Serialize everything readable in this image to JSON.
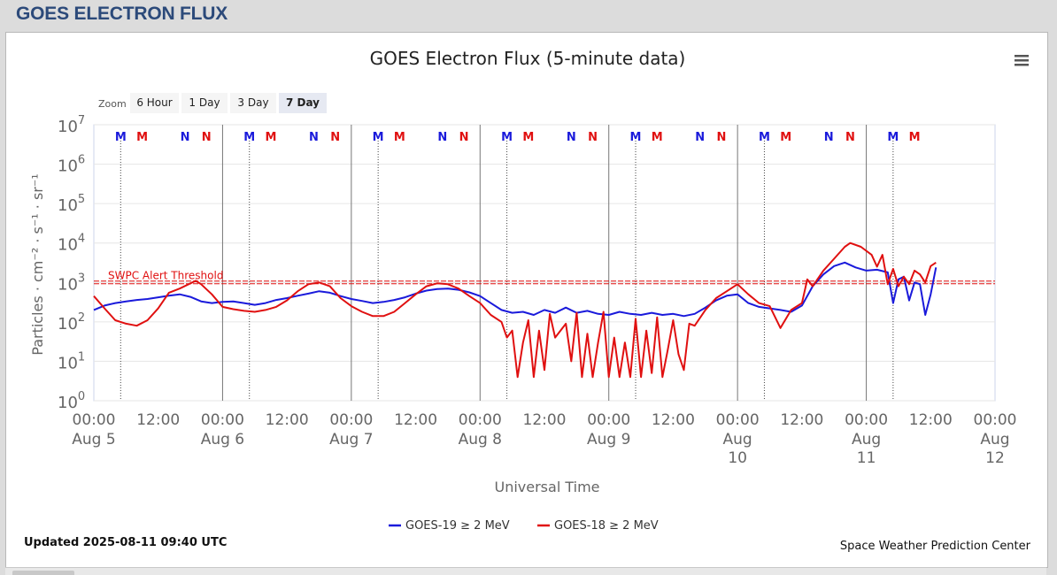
{
  "page": {
    "title": "GOES ELECTRON FLUX"
  },
  "chart": {
    "title": "GOES Electron Flux (5-minute data)",
    "zoom_label": "Zoom",
    "zoom_buttons": [
      "6 Hour",
      "1 Day",
      "3 Day",
      "7 Day"
    ],
    "zoom_selected": "7 Day",
    "y_axis_title": "Particles · cm⁻² · s⁻¹ · sr⁻¹",
    "x_axis_title": "Universal Time",
    "threshold_label": "SWPC Alert Threshold",
    "updated": "Updated 2025-08-11 09:40 UTC",
    "credit": "Space Weather Prediction Center",
    "menu_icon": "hamburger-menu-icon",
    "colors": {
      "goes19": "#1a1adb",
      "goes18": "#e01010",
      "threshold": "#e01010",
      "marker_m": "#1a1adb",
      "marker_n": "#1a1adb",
      "page_title": "#2c4a7a"
    }
  },
  "chart_data": {
    "type": "line",
    "title": "GOES Electron Flux (5-minute data)",
    "xlabel": "Universal Time",
    "ylabel": "Particles · cm⁻² · s⁻¹ · sr⁻¹",
    "y_scale": "log",
    "ylim": [
      1,
      10000000
    ],
    "xlim_hours": [
      0,
      168
    ],
    "y_ticks": [
      {
        "base": "10",
        "exp": "0"
      },
      {
        "base": "10",
        "exp": "1"
      },
      {
        "base": "10",
        "exp": "2"
      },
      {
        "base": "10",
        "exp": "3"
      },
      {
        "base": "10",
        "exp": "4"
      },
      {
        "base": "10",
        "exp": "5"
      },
      {
        "base": "10",
        "exp": "6"
      },
      {
        "base": "10",
        "exp": "7"
      }
    ],
    "x_ticks": [
      {
        "h": 0,
        "time": "00:00",
        "date": [
          "Aug 5"
        ]
      },
      {
        "h": 12,
        "time": "12:00",
        "date": []
      },
      {
        "h": 24,
        "time": "00:00",
        "date": [
          "Aug 6"
        ]
      },
      {
        "h": 36,
        "time": "12:00",
        "date": []
      },
      {
        "h": 48,
        "time": "00:00",
        "date": [
          "Aug 7"
        ]
      },
      {
        "h": 60,
        "time": "12:00",
        "date": []
      },
      {
        "h": 72,
        "time": "00:00",
        "date": [
          "Aug 8"
        ]
      },
      {
        "h": 84,
        "time": "12:00",
        "date": []
      },
      {
        "h": 96,
        "time": "00:00",
        "date": [
          "Aug 9"
        ]
      },
      {
        "h": 108,
        "time": "12:00",
        "date": []
      },
      {
        "h": 120,
        "time": "00:00",
        "date": [
          "Aug",
          "10"
        ]
      },
      {
        "h": 132,
        "time": "12:00",
        "date": []
      },
      {
        "h": 144,
        "time": "00:00",
        "date": [
          "Aug",
          "11"
        ]
      },
      {
        "h": 156,
        "time": "12:00",
        "date": []
      },
      {
        "h": 168,
        "time": "00:00",
        "date": [
          "Aug",
          "12"
        ]
      }
    ],
    "threshold": 1000,
    "markers": [
      {
        "h": 5,
        "label": "M",
        "color": "#1a1adb"
      },
      {
        "h": 9,
        "label": "M",
        "color": "#e01010"
      },
      {
        "h": 17,
        "label": "N",
        "color": "#1a1adb"
      },
      {
        "h": 21,
        "label": "N",
        "color": "#e01010"
      },
      {
        "h": 29,
        "label": "M",
        "color": "#1a1adb"
      },
      {
        "h": 33,
        "label": "M",
        "color": "#e01010"
      },
      {
        "h": 41,
        "label": "N",
        "color": "#1a1adb"
      },
      {
        "h": 45,
        "label": "N",
        "color": "#e01010"
      },
      {
        "h": 53,
        "label": "M",
        "color": "#1a1adb"
      },
      {
        "h": 57,
        "label": "M",
        "color": "#e01010"
      },
      {
        "h": 65,
        "label": "N",
        "color": "#1a1adb"
      },
      {
        "h": 69,
        "label": "N",
        "color": "#e01010"
      },
      {
        "h": 77,
        "label": "M",
        "color": "#1a1adb"
      },
      {
        "h": 81,
        "label": "M",
        "color": "#e01010"
      },
      {
        "h": 89,
        "label": "N",
        "color": "#1a1adb"
      },
      {
        "h": 93,
        "label": "N",
        "color": "#e01010"
      },
      {
        "h": 101,
        "label": "M",
        "color": "#1a1adb"
      },
      {
        "h": 105,
        "label": "M",
        "color": "#e01010"
      },
      {
        "h": 113,
        "label": "N",
        "color": "#1a1adb"
      },
      {
        "h": 117,
        "label": "N",
        "color": "#e01010"
      },
      {
        "h": 125,
        "label": "M",
        "color": "#1a1adb"
      },
      {
        "h": 129,
        "label": "M",
        "color": "#e01010"
      },
      {
        "h": 137,
        "label": "N",
        "color": "#1a1adb"
      },
      {
        "h": 141,
        "label": "N",
        "color": "#e01010"
      },
      {
        "h": 149,
        "label": "M",
        "color": "#1a1adb"
      },
      {
        "h": 153,
        "label": "M",
        "color": "#e01010"
      }
    ],
    "series": [
      {
        "name": "GOES-19 ≥ 2 MeV",
        "color": "#1a1adb",
        "points": [
          [
            0,
            200
          ],
          [
            2,
            260
          ],
          [
            4,
            300
          ],
          [
            6,
            330
          ],
          [
            8,
            360
          ],
          [
            10,
            380
          ],
          [
            12,
            420
          ],
          [
            14,
            460
          ],
          [
            16,
            500
          ],
          [
            18,
            430
          ],
          [
            20,
            330
          ],
          [
            22,
            300
          ],
          [
            24,
            320
          ],
          [
            26,
            330
          ],
          [
            28,
            300
          ],
          [
            30,
            270
          ],
          [
            32,
            300
          ],
          [
            34,
            360
          ],
          [
            36,
            400
          ],
          [
            38,
            460
          ],
          [
            40,
            520
          ],
          [
            42,
            600
          ],
          [
            44,
            550
          ],
          [
            46,
            450
          ],
          [
            48,
            380
          ],
          [
            50,
            340
          ],
          [
            52,
            300
          ],
          [
            54,
            320
          ],
          [
            56,
            360
          ],
          [
            58,
            420
          ],
          [
            60,
            520
          ],
          [
            62,
            620
          ],
          [
            64,
            680
          ],
          [
            66,
            700
          ],
          [
            68,
            650
          ],
          [
            70,
            560
          ],
          [
            72,
            450
          ],
          [
            74,
            300
          ],
          [
            76,
            200
          ],
          [
            78,
            170
          ],
          [
            80,
            180
          ],
          [
            82,
            150
          ],
          [
            84,
            200
          ],
          [
            86,
            170
          ],
          [
            88,
            230
          ],
          [
            90,
            170
          ],
          [
            92,
            190
          ],
          [
            94,
            160
          ],
          [
            96,
            150
          ],
          [
            98,
            180
          ],
          [
            100,
            160
          ],
          [
            102,
            150
          ],
          [
            104,
            170
          ],
          [
            106,
            150
          ],
          [
            108,
            160
          ],
          [
            110,
            140
          ],
          [
            112,
            160
          ],
          [
            114,
            230
          ],
          [
            116,
            350
          ],
          [
            118,
            460
          ],
          [
            120,
            500
          ],
          [
            122,
            300
          ],
          [
            124,
            240
          ],
          [
            126,
            220
          ],
          [
            128,
            200
          ],
          [
            130,
            180
          ],
          [
            132,
            260
          ],
          [
            134,
            800
          ],
          [
            136,
            1600
          ],
          [
            138,
            2600
          ],
          [
            140,
            3200
          ],
          [
            142,
            2400
          ],
          [
            144,
            2000
          ],
          [
            146,
            2100
          ],
          [
            148,
            1800
          ],
          [
            149,
            300
          ],
          [
            150,
            1200
          ],
          [
            151,
            1400
          ],
          [
            152,
            350
          ],
          [
            153,
            1000
          ],
          [
            154,
            900
          ],
          [
            155,
            150
          ],
          [
            156,
            500
          ],
          [
            157,
            2400
          ]
        ]
      },
      {
        "name": "GOES-18 ≥ 2 MeV",
        "color": "#e01010",
        "points": [
          [
            0,
            450
          ],
          [
            2,
            220
          ],
          [
            4,
            110
          ],
          [
            6,
            90
          ],
          [
            8,
            80
          ],
          [
            10,
            110
          ],
          [
            12,
            220
          ],
          [
            14,
            550
          ],
          [
            16,
            700
          ],
          [
            18,
            950
          ],
          [
            19,
            1100
          ],
          [
            20,
            900
          ],
          [
            22,
            500
          ],
          [
            24,
            240
          ],
          [
            26,
            210
          ],
          [
            28,
            190
          ],
          [
            30,
            180
          ],
          [
            32,
            200
          ],
          [
            34,
            240
          ],
          [
            36,
            350
          ],
          [
            38,
            600
          ],
          [
            40,
            900
          ],
          [
            42,
            1000
          ],
          [
            44,
            800
          ],
          [
            46,
            400
          ],
          [
            48,
            250
          ],
          [
            50,
            180
          ],
          [
            52,
            140
          ],
          [
            54,
            140
          ],
          [
            56,
            180
          ],
          [
            58,
            300
          ],
          [
            60,
            500
          ],
          [
            62,
            800
          ],
          [
            64,
            950
          ],
          [
            66,
            900
          ],
          [
            68,
            700
          ],
          [
            70,
            450
          ],
          [
            72,
            300
          ],
          [
            74,
            150
          ],
          [
            76,
            100
          ],
          [
            77,
            40
          ],
          [
            78,
            60
          ],
          [
            79,
            4
          ],
          [
            80,
            30
          ],
          [
            81,
            110
          ],
          [
            82,
            4
          ],
          [
            83,
            60
          ],
          [
            84,
            6
          ],
          [
            85,
            160
          ],
          [
            86,
            40
          ],
          [
            88,
            90
          ],
          [
            89,
            10
          ],
          [
            90,
            170
          ],
          [
            91,
            4
          ],
          [
            92,
            50
          ],
          [
            93,
            4
          ],
          [
            94,
            30
          ],
          [
            95,
            180
          ],
          [
            96,
            4
          ],
          [
            97,
            40
          ],
          [
            98,
            4
          ],
          [
            99,
            30
          ],
          [
            100,
            4
          ],
          [
            101,
            120
          ],
          [
            102,
            4
          ],
          [
            103,
            60
          ],
          [
            104,
            5
          ],
          [
            105,
            130
          ],
          [
            106,
            4
          ],
          [
            107,
            20
          ],
          [
            108,
            110
          ],
          [
            109,
            15
          ],
          [
            110,
            6
          ],
          [
            111,
            90
          ],
          [
            112,
            80
          ],
          [
            114,
            200
          ],
          [
            116,
            400
          ],
          [
            118,
            600
          ],
          [
            120,
            900
          ],
          [
            122,
            500
          ],
          [
            124,
            300
          ],
          [
            126,
            250
          ],
          [
            128,
            70
          ],
          [
            130,
            200
          ],
          [
            132,
            300
          ],
          [
            133,
            1200
          ],
          [
            134,
            800
          ],
          [
            136,
            2000
          ],
          [
            138,
            4000
          ],
          [
            140,
            8000
          ],
          [
            141,
            10000
          ],
          [
            143,
            8000
          ],
          [
            145,
            5000
          ],
          [
            146,
            2500
          ],
          [
            147,
            5000
          ],
          [
            148,
            900
          ],
          [
            149,
            2200
          ],
          [
            150,
            800
          ],
          [
            151,
            1400
          ],
          [
            152,
            900
          ],
          [
            153,
            2000
          ],
          [
            154,
            1600
          ],
          [
            155,
            1000
          ],
          [
            156,
            2600
          ],
          [
            157,
            3200
          ]
        ]
      }
    ],
    "legend": {
      "position": "bottom-center",
      "entries": [
        "GOES-19 ≥ 2 MeV",
        "GOES-18 ≥ 2 MeV"
      ]
    },
    "grid": true
  }
}
